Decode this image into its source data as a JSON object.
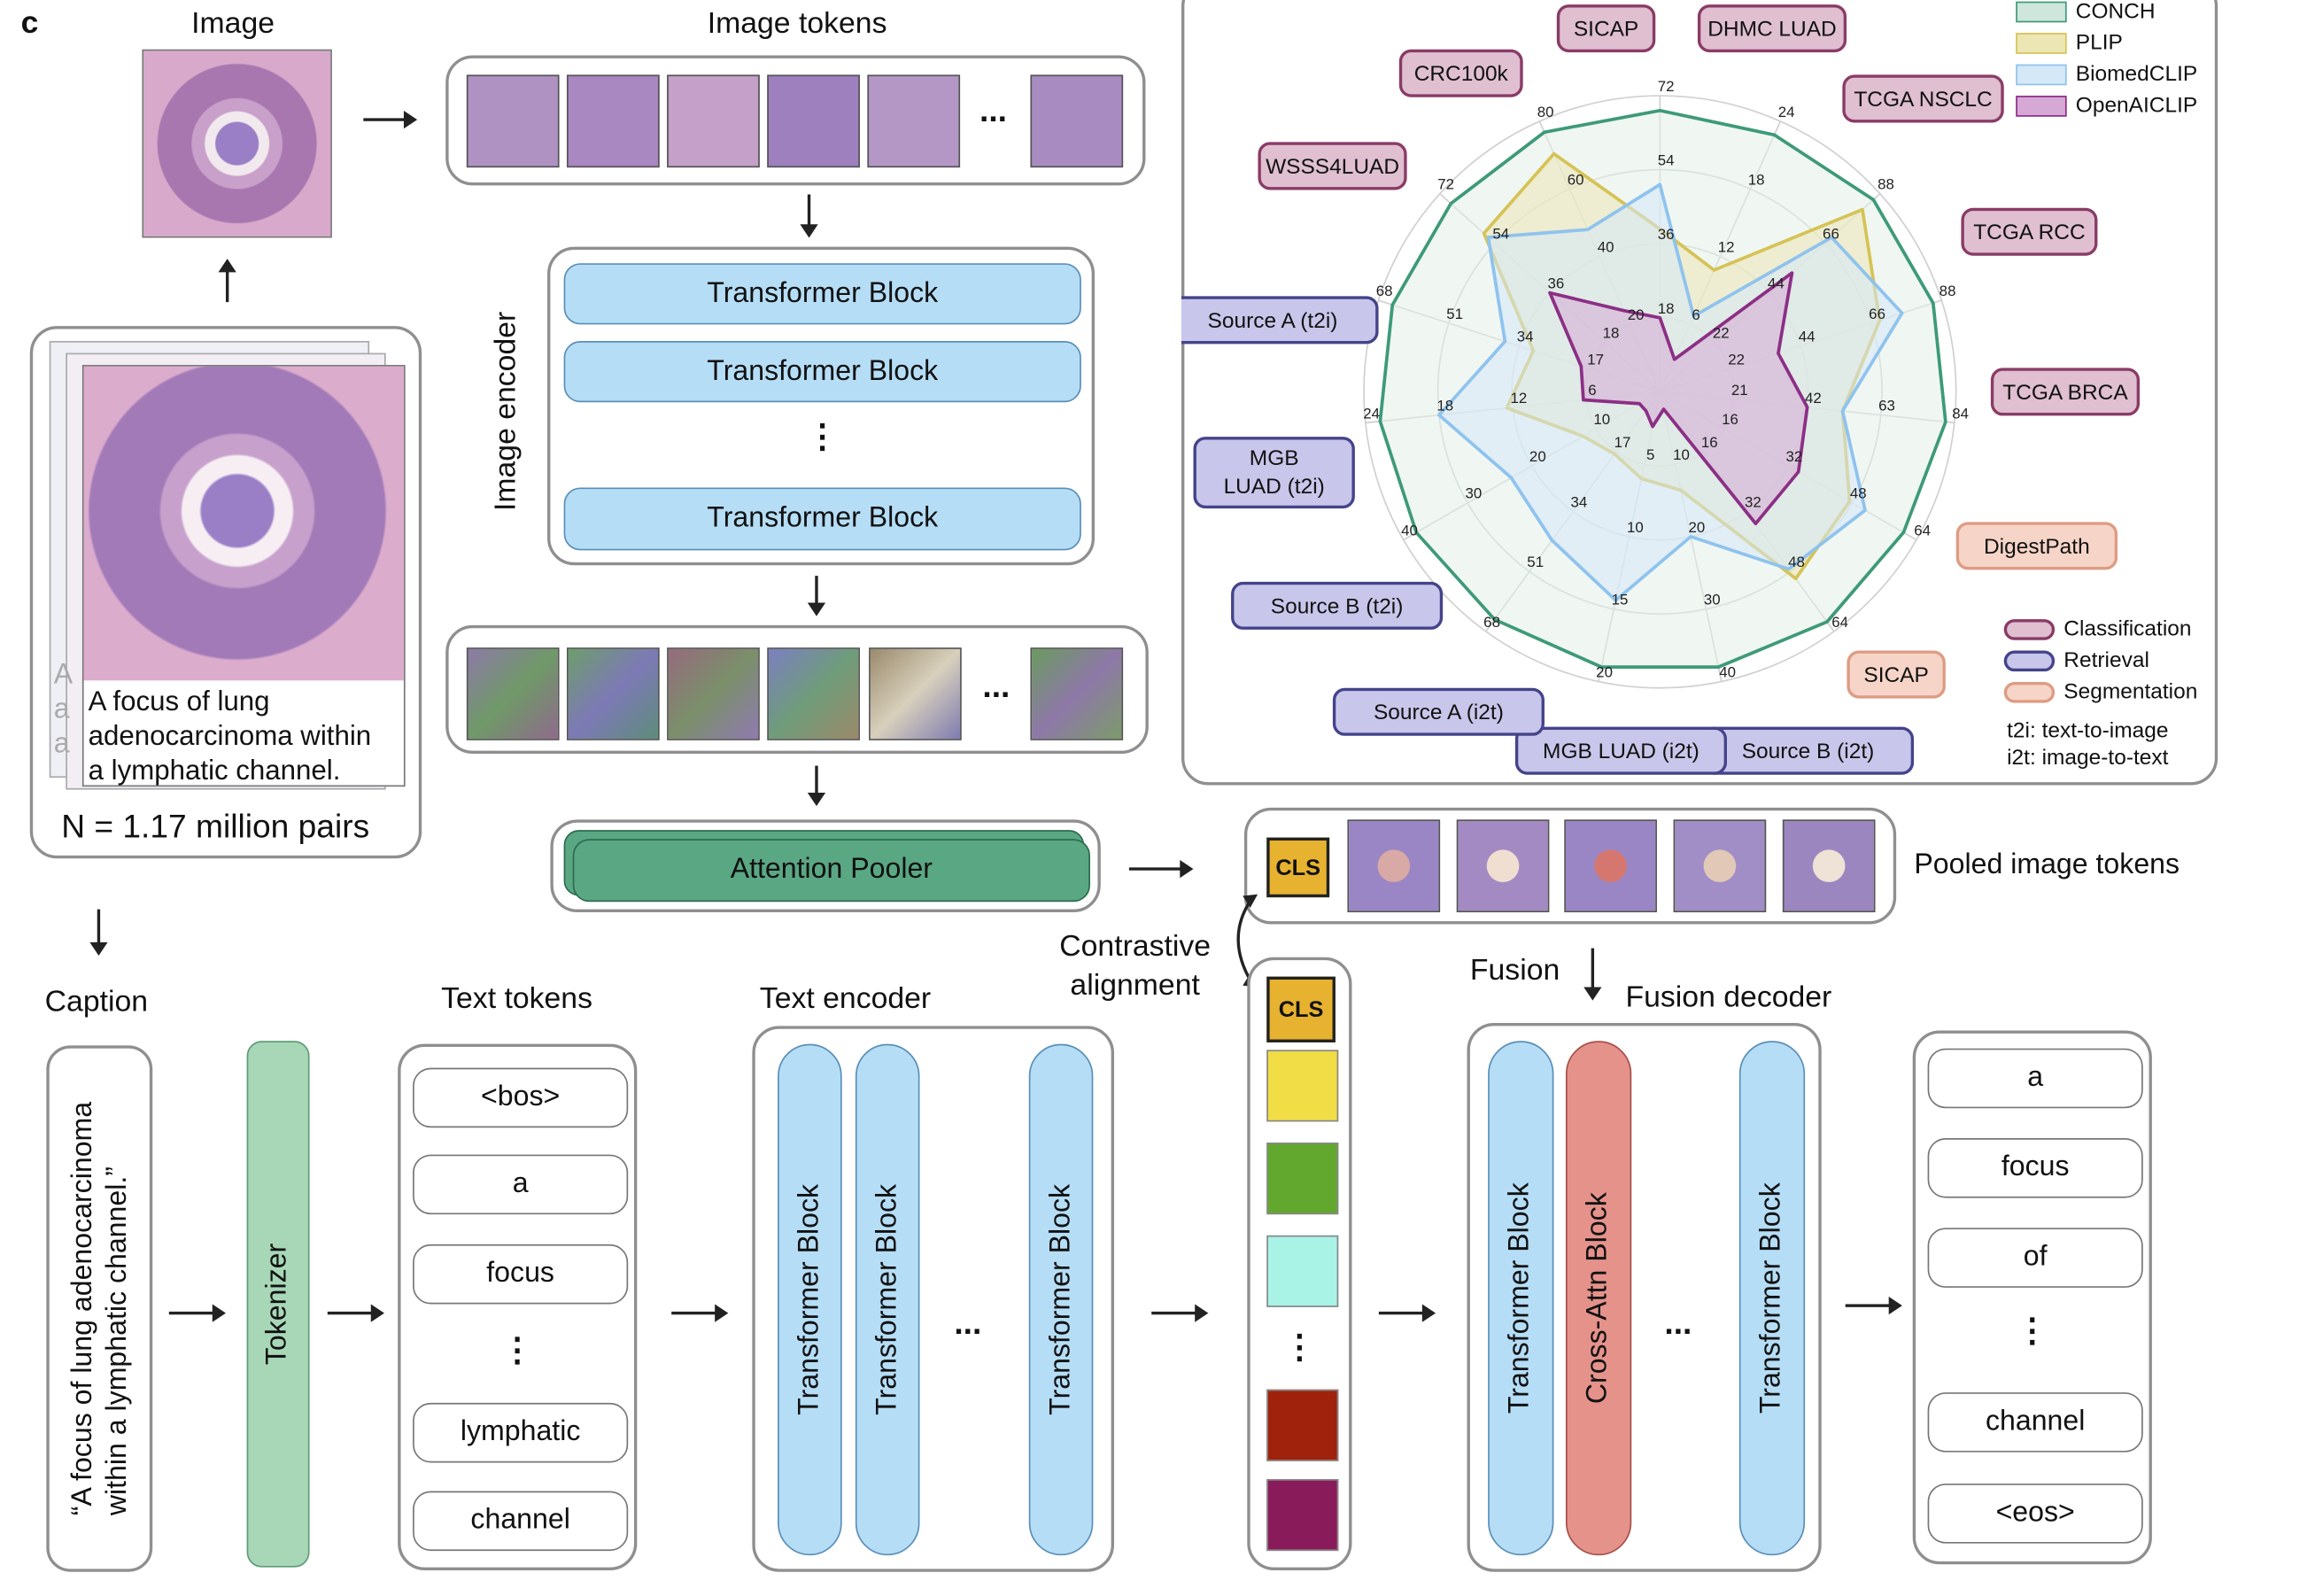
{
  "panel_letter": "c",
  "image_section": {
    "title": "Image",
    "caption_lines": [
      "A focus of lung",
      "adenocarcinoma within",
      "a lymphatic channel."
    ],
    "back_card_letters": [
      "A",
      "a",
      "a"
    ],
    "dataset_size": "N = 1.17 million pairs"
  },
  "image_tokens": {
    "title": "Image tokens",
    "ellipsis": "..."
  },
  "image_encoder": {
    "title": "Image encoder",
    "blocks": [
      "Transformer Block",
      "Transformer Block",
      "Transformer Block"
    ],
    "ellipsis": "⋮"
  },
  "embedding_tokens": {
    "ellipsis": "..."
  },
  "attention_pooler": "Attention Pooler",
  "pooled": {
    "cls": "CLS",
    "label": "Pooled image tokens"
  },
  "contrastive": [
    "Contrastive",
    "alignment"
  ],
  "caption_section": {
    "title": "Caption",
    "text_lines": [
      "“A focus of lung adenocarcinoma",
      "within a lymphatic channel.”"
    ]
  },
  "tokenizer": "Tokenizer",
  "text_tokens": {
    "title": "Text tokens",
    "items": [
      "<bos>",
      "a",
      "focus",
      "⋮",
      "lymphatic",
      "channel"
    ]
  },
  "text_encoder": {
    "title": "Text encoder",
    "blocks": [
      "Transformer Block",
      "Transformer Block",
      "Transformer Block"
    ],
    "ellipsis": "..."
  },
  "fused_column": {
    "cls": "CLS",
    "ellipsis": "⋮",
    "colors": [
      "#f1dd45",
      "#63a82e",
      "#a9f2e6",
      "#a0210c",
      "#8a1b5b"
    ]
  },
  "fusion": {
    "label": "Fusion",
    "title": "Fusion decoder",
    "blocks": [
      "Transformer Block",
      "Cross-Attn Block",
      "Transformer Block"
    ],
    "ellipsis": "..."
  },
  "output_tokens": {
    "items": [
      "a",
      "focus",
      "of",
      "⋮",
      "channel",
      "<eos>"
    ]
  },
  "radar": {
    "models": [
      {
        "name": "CONCH",
        "color": "#3e9a78",
        "fill": "#e4f0ea"
      },
      {
        "name": "PLIP",
        "color": "#d6c356",
        "fill": "#ece6b4"
      },
      {
        "name": "BiomedCLIP",
        "color": "#8fc3ee",
        "fill": "#d5e8f7"
      },
      {
        "name": "OpenAICLIP",
        "color": "#8c2f85",
        "fill": "#d6a8d6"
      }
    ],
    "task_legend": [
      {
        "name": "Classification",
        "color": "#8a3b66",
        "fill": "#dfbfd0"
      },
      {
        "name": "Retrieval",
        "color": "#45438a",
        "fill": "#c8c6ea"
      },
      {
        "name": "Segmentation",
        "color": "#dd9c84",
        "fill": "#f6d5c8"
      }
    ],
    "notes": [
      "t2i: text-to-image",
      "i2t: image-to-text"
    ],
    "axes": [
      {
        "label": "SICAP",
        "task": "classification",
        "ticks": [
          "72",
          "54",
          "36",
          "18"
        ],
        "values": {
          "CONCH": 0.95,
          "PLIP": 0.55,
          "BiomedCLIP": 0.7,
          "OpenAICLIP": 0.25
        }
      },
      {
        "label": "DHMC LUAD",
        "task": "classification",
        "ticks": [
          "24",
          "18",
          "12",
          "6"
        ],
        "values": {
          "CONCH": 0.95,
          "PLIP": 0.45,
          "BiomedCLIP": 0.28,
          "OpenAICLIP": 0.12
        }
      },
      {
        "label": "TCGA NSCLC",
        "task": "classification",
        "ticks": [
          "88",
          "66",
          "44",
          "22"
        ],
        "values": {
          "CONCH": 0.97,
          "PLIP": 0.92,
          "BiomedCLIP": 0.78,
          "OpenAICLIP": 0.6
        }
      },
      {
        "label": "TCGA RCC",
        "task": "classification",
        "ticks": [
          "88",
          "66",
          "44",
          "22"
        ],
        "values": {
          "CONCH": 0.97,
          "PLIP": 0.78,
          "BiomedCLIP": 0.86,
          "OpenAICLIP": 0.42
        }
      },
      {
        "label": "TCGA BRCA",
        "task": "classification",
        "ticks": [
          "84",
          "63",
          "42",
          "21"
        ],
        "values": {
          "CONCH": 0.97,
          "PLIP": 0.62,
          "BiomedCLIP": 0.62,
          "OpenAICLIP": 0.5
        }
      },
      {
        "label": "DigestPath",
        "task": "segmentation",
        "ticks": [
          "64",
          "48",
          "32",
          "16"
        ],
        "values": {
          "CONCH": 0.95,
          "PLIP": 0.74,
          "BiomedCLIP": 0.8,
          "OpenAICLIP": 0.54
        }
      },
      {
        "label": "SICAP",
        "task": "segmentation",
        "ticks": [
          "64",
          "48",
          "32",
          "16"
        ],
        "values": {
          "CONCH": 0.96,
          "PLIP": 0.78,
          "BiomedCLIP": 0.74,
          "OpenAICLIP": 0.55
        }
      },
      {
        "label": "Source B (i2t)",
        "task": "retrieval",
        "ticks": [
          "40",
          "30",
          "20",
          "10"
        ],
        "values": {
          "CONCH": 0.95,
          "PLIP": 0.34,
          "BiomedCLIP": 0.5,
          "OpenAICLIP": 0.06
        }
      },
      {
        "label": "MGB LUAD (i2t)",
        "task": "retrieval",
        "ticks": [
          "20",
          "15",
          "10",
          "5"
        ],
        "values": {
          "CONCH": 0.95,
          "PLIP": 0.3,
          "BiomedCLIP": 0.72,
          "OpenAICLIP": 0.12
        }
      },
      {
        "label": "Source A (i2t)",
        "task": "retrieval",
        "ticks": [
          "68",
          "51",
          "34",
          "17"
        ],
        "values": {
          "CONCH": 0.95,
          "PLIP": 0.26,
          "BiomedCLIP": 0.62,
          "OpenAICLIP": 0.08
        }
      },
      {
        "label": "Source B (t2i)",
        "task": "retrieval",
        "ticks": [
          "40",
          "30",
          "20",
          "10"
        ],
        "values": {
          "CONCH": 0.95,
          "PLIP": 0.3,
          "BiomedCLIP": 0.58,
          "OpenAICLIP": 0.08
        }
      },
      {
        "label": "MGB LUAD (t2i)",
        "task": "retrieval",
        "ticks": [
          "24",
          "18",
          "12",
          "6"
        ],
        "values": {
          "CONCH": 0.95,
          "PLIP": 0.52,
          "BiomedCLIP": 0.75,
          "OpenAICLIP": 0.26
        }
      },
      {
        "label": "Source A (t2i)",
        "task": "retrieval",
        "ticks": [
          "68",
          "51",
          "34",
          "17"
        ],
        "values": {
          "CONCH": 0.95,
          "PLIP": 0.45,
          "BiomedCLIP": 0.55,
          "OpenAICLIP": 0.28
        }
      },
      {
        "label": "WSSS4LUAD",
        "task": "classification",
        "ticks": [
          "72",
          "54",
          "36",
          "18"
        ],
        "values": {
          "CONCH": 0.95,
          "PLIP": 0.8,
          "BiomedCLIP": 0.78,
          "OpenAICLIP": 0.5
        }
      },
      {
        "label": "CRC100k",
        "task": "classification",
        "ticks": [
          "80",
          "60",
          "40",
          "20"
        ],
        "values": {
          "CONCH": 0.96,
          "PLIP": 0.88,
          "BiomedCLIP": 0.6,
          "OpenAICLIP": 0.3
        }
      }
    ]
  }
}
